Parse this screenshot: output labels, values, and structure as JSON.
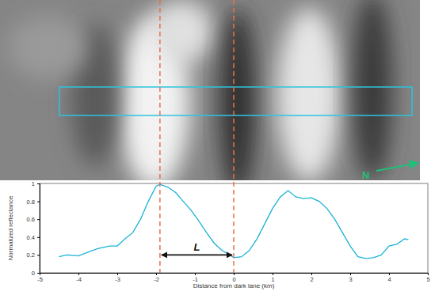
{
  "chart_data": {
    "type": "line",
    "x_label": "Distance from dark lane (km)",
    "y_label": "Normalized reflectance",
    "x": [
      -4.5,
      -4.3,
      -4.0,
      -3.7,
      -3.5,
      -3.2,
      -3.0,
      -2.8,
      -2.6,
      -2.4,
      -2.2,
      -2.0,
      -1.9,
      -1.7,
      -1.5,
      -1.3,
      -1.1,
      -0.9,
      -0.7,
      -0.5,
      -0.3,
      -0.1,
      0,
      0.2,
      0.4,
      0.6,
      0.8,
      1.0,
      1.2,
      1.4,
      1.6,
      1.8,
      2.0,
      2.2,
      2.4,
      2.6,
      2.8,
      3.0,
      3.2,
      3.4,
      3.6,
      3.8,
      4.0,
      4.2,
      4.4,
      4.5
    ],
    "values": [
      0.18,
      0.2,
      0.19,
      0.24,
      0.27,
      0.3,
      0.3,
      0.38,
      0.45,
      0.6,
      0.8,
      0.97,
      0.99,
      0.96,
      0.9,
      0.8,
      0.7,
      0.58,
      0.45,
      0.33,
      0.25,
      0.2,
      0.17,
      0.18,
      0.25,
      0.38,
      0.55,
      0.72,
      0.85,
      0.92,
      0.85,
      0.83,
      0.84,
      0.8,
      0.72,
      0.6,
      0.45,
      0.3,
      0.18,
      0.16,
      0.17,
      0.2,
      0.3,
      0.32,
      0.38,
      0.37
    ],
    "color": "#19b3d6",
    "xlim": [
      -5,
      5
    ],
    "xticks": [
      -5,
      -4,
      -3,
      -2,
      -1,
      0,
      1,
      2,
      3,
      4,
      5
    ],
    "ylim": [
      0,
      1
    ],
    "yticks": [
      0,
      0.2,
      0.4,
      0.6,
      0.8,
      1
    ],
    "vlines": [
      -1.9,
      0
    ],
    "span_label": {
      "text": "L",
      "from": -1.9,
      "to": 0,
      "y": 0.2
    },
    "north_label": "N"
  }
}
